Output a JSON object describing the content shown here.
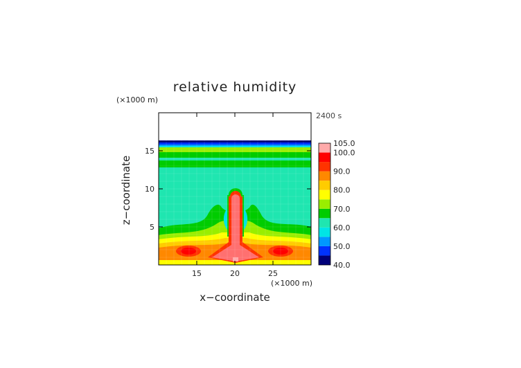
{
  "chart_data": {
    "type": "heatmap",
    "title": "relative humidity",
    "xlabel": "x−coordinate",
    "ylabel": "z−coordinate",
    "x_unit": "(×1000 m)",
    "y_unit": "(×1000 m)",
    "time_label": "2400 s",
    "xlim": [
      10,
      30
    ],
    "ylim": [
      0,
      20
    ],
    "x_ticks": [
      15,
      20,
      25
    ],
    "x_tick_labels": [
      "15",
      "20",
      "25"
    ],
    "y_ticks": [
      5,
      10,
      15
    ],
    "y_tick_labels": [
      "5",
      "10",
      "15"
    ],
    "colorbar": {
      "min": 40.0,
      "max": 105.0,
      "tick_values": [
        40,
        50,
        60,
        70,
        80,
        90,
        100,
        105
      ],
      "tick_labels": [
        "40.0",
        "50.0",
        "60.0",
        "70.0",
        "80.0",
        "90.0",
        "100.0",
        "105.0"
      ],
      "levels": [
        {
          "value": 40,
          "color": "#00007a"
        },
        {
          "value": 45,
          "color": "#0033ff"
        },
        {
          "value": 50,
          "color": "#0099ff"
        },
        {
          "value": 55,
          "color": "#00e5e5"
        },
        {
          "value": 60,
          "color": "#1fe6b0"
        },
        {
          "value": 65,
          "color": "#00cc00"
        },
        {
          "value": 70,
          "color": "#99ee00"
        },
        {
          "value": 75,
          "color": "#ffff00"
        },
        {
          "value": 80,
          "color": "#ffcc00"
        },
        {
          "value": 85,
          "color": "#ff8800"
        },
        {
          "value": 90,
          "color": "#ff3300"
        },
        {
          "value": 95,
          "color": "#ff0000"
        },
        {
          "value": 100,
          "color": "#ff7070"
        },
        {
          "value": 105,
          "color": "#ffaaaa"
        }
      ]
    }
  }
}
